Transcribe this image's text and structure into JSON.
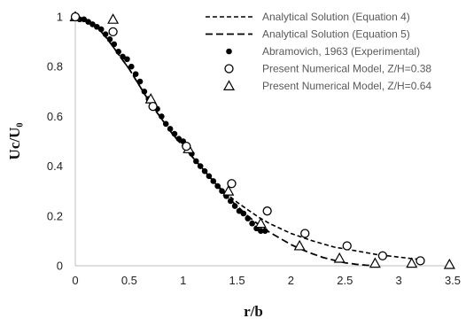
{
  "chart_data": {
    "type": "scatter",
    "xlabel": "r/b",
    "ylabel": "Uc/U₀",
    "xlim": [
      0,
      3.5
    ],
    "ylim": [
      0,
      1
    ],
    "x_ticks": [
      "0",
      "0.5",
      "1",
      "1.5",
      "2",
      "2.5",
      "3",
      "3.5"
    ],
    "y_ticks": [
      "0",
      "0.2",
      "0.4",
      "0.6",
      "0.8",
      "1"
    ],
    "grid": false,
    "legend_position": "top-right",
    "series": [
      {
        "name": "Analytical Solution (Equation 4)",
        "style": "dashed-line",
        "x": [
          0,
          0.1,
          0.2,
          0.3,
          0.4,
          0.5,
          0.6,
          0.7,
          0.8,
          0.9,
          1.0,
          1.1,
          1.2,
          1.3,
          1.4,
          1.5,
          1.6,
          1.7,
          1.8,
          1.9,
          2.0,
          2.2,
          2.4,
          2.6,
          2.8,
          3.0,
          3.2
        ],
        "y": [
          1.0,
          0.99,
          0.96,
          0.91,
          0.85,
          0.79,
          0.72,
          0.65,
          0.59,
          0.53,
          0.48,
          0.43,
          0.38,
          0.33,
          0.29,
          0.255,
          0.225,
          0.195,
          0.17,
          0.15,
          0.13,
          0.1,
          0.075,
          0.06,
          0.045,
          0.035,
          0.025
        ]
      },
      {
        "name": "Analytical Solution (Equation 5)",
        "style": "dashed-line",
        "x": [
          0,
          0.1,
          0.2,
          0.3,
          0.4,
          0.5,
          0.6,
          0.7,
          0.8,
          0.9,
          1.0,
          1.1,
          1.2,
          1.3,
          1.4,
          1.5,
          1.6,
          1.7,
          1.8,
          1.9,
          2.0,
          2.1,
          2.2,
          2.3,
          2.4,
          2.5,
          2.6,
          2.7,
          2.8
        ],
        "y": [
          1.0,
          0.99,
          0.96,
          0.91,
          0.85,
          0.79,
          0.72,
          0.65,
          0.59,
          0.53,
          0.48,
          0.43,
          0.38,
          0.33,
          0.28,
          0.24,
          0.2,
          0.165,
          0.135,
          0.11,
          0.085,
          0.065,
          0.048,
          0.033,
          0.022,
          0.012,
          0.006,
          0.002,
          0.0
        ]
      },
      {
        "name": "Abramovich, 1963 (Experimental)",
        "marker": "filled-circle",
        "x": [
          0.0,
          0.04,
          0.08,
          0.12,
          0.16,
          0.2,
          0.24,
          0.28,
          0.32,
          0.36,
          0.4,
          0.44,
          0.48,
          0.52,
          0.56,
          0.6,
          0.64,
          0.68,
          0.72,
          0.76,
          0.8,
          0.84,
          0.88,
          0.92,
          0.96,
          1.0,
          1.04,
          1.08,
          1.12,
          1.16,
          1.2,
          1.24,
          1.28,
          1.32,
          1.36,
          1.4,
          1.44,
          1.48,
          1.52,
          1.56,
          1.6,
          1.64,
          1.68,
          1.72,
          1.76
        ],
        "y": [
          1.0,
          0.99,
          0.99,
          0.98,
          0.97,
          0.96,
          0.95,
          0.93,
          0.91,
          0.89,
          0.86,
          0.84,
          0.83,
          0.8,
          0.77,
          0.74,
          0.7,
          0.67,
          0.64,
          0.63,
          0.6,
          0.57,
          0.55,
          0.53,
          0.51,
          0.5,
          0.48,
          0.45,
          0.42,
          0.4,
          0.38,
          0.36,
          0.34,
          0.32,
          0.3,
          0.28,
          0.26,
          0.24,
          0.22,
          0.21,
          0.19,
          0.17,
          0.15,
          0.14,
          0.14
        ]
      },
      {
        "name": "Present Numerical Model, Z/H=0.38",
        "marker": "open-circle",
        "x": [
          0.0,
          0.35,
          0.72,
          1.03,
          1.45,
          1.78,
          2.13,
          2.52,
          2.85,
          3.2
        ],
        "y": [
          1.0,
          0.94,
          0.64,
          0.48,
          0.33,
          0.22,
          0.13,
          0.08,
          0.04,
          0.02
        ]
      },
      {
        "name": "Present Numerical Model, Z/H=0.64",
        "marker": "open-triangle",
        "x": [
          0.0,
          0.35,
          0.7,
          1.05,
          1.42,
          1.72,
          2.08,
          2.45,
          2.78,
          3.12,
          3.47
        ],
        "y": [
          1.0,
          0.99,
          0.67,
          0.47,
          0.3,
          0.17,
          0.08,
          0.03,
          0.01,
          0.01,
          0.005
        ]
      }
    ]
  }
}
